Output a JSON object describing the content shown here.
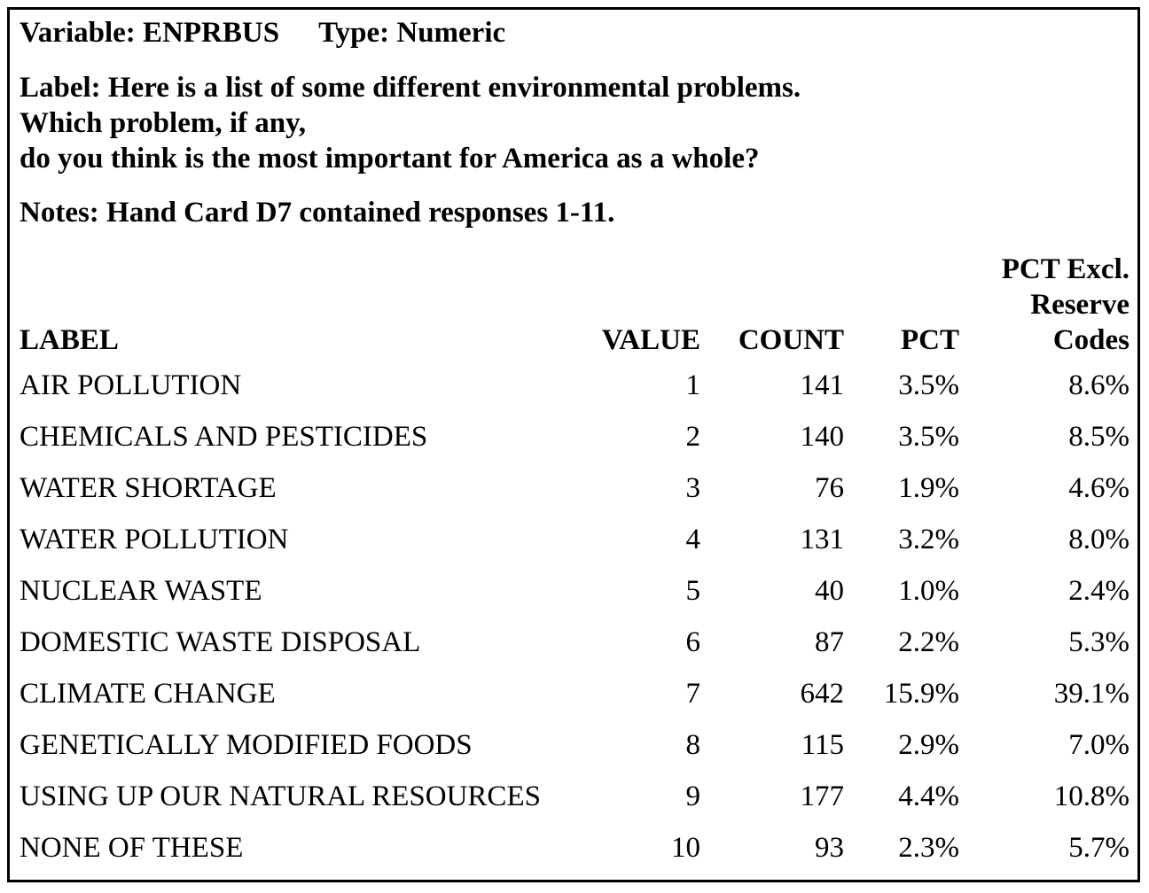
{
  "variable": {
    "name_line": "Variable: ENPRBUS",
    "type_line": "Type: Numeric"
  },
  "label_lines": [
    "Label: Here is a list of some different environmental problems.",
    "Which problem, if any,",
    "do you think is the most important for America as a whole?"
  ],
  "notes": "Notes: Hand Card D7 contained responses 1-11.",
  "table": {
    "headers": {
      "label": "LABEL",
      "value": "VALUE",
      "count": "COUNT",
      "pct": "PCT",
      "pct_excl_lines": [
        "PCT Excl.",
        "Reserve",
        "Codes"
      ]
    },
    "rows": [
      {
        "label": "AIR POLLUTION",
        "value": "1",
        "count": "141",
        "pct": "3.5%",
        "pct_excl": "8.6%"
      },
      {
        "label": "CHEMICALS AND PESTICIDES",
        "value": "2",
        "count": "140",
        "pct": "3.5%",
        "pct_excl": "8.5%"
      },
      {
        "label": "WATER SHORTAGE",
        "value": "3",
        "count": "76",
        "pct": "1.9%",
        "pct_excl": "4.6%"
      },
      {
        "label": "WATER POLLUTION",
        "value": "4",
        "count": "131",
        "pct": "3.2%",
        "pct_excl": "8.0%"
      },
      {
        "label": "NUCLEAR WASTE",
        "value": "5",
        "count": "40",
        "pct": "1.0%",
        "pct_excl": "2.4%"
      },
      {
        "label": "DOMESTIC WASTE DISPOSAL",
        "value": "6",
        "count": "87",
        "pct": "2.2%",
        "pct_excl": "5.3%"
      },
      {
        "label": "CLIMATE CHANGE",
        "value": "7",
        "count": "642",
        "pct": "15.9%",
        "pct_excl": "39.1%"
      },
      {
        "label": "GENETICALLY MODIFIED FOODS",
        "value": "8",
        "count": "115",
        "pct": "2.9%",
        "pct_excl": "7.0%"
      },
      {
        "label": "USING UP OUR NATURAL RESOURCES",
        "value": "9",
        "count": "177",
        "pct": "4.4%",
        "pct_excl": "10.8%"
      },
      {
        "label": "NONE OF THESE",
        "value": "10",
        "count": "93",
        "pct": "2.3%",
        "pct_excl": "5.7%"
      }
    ]
  }
}
